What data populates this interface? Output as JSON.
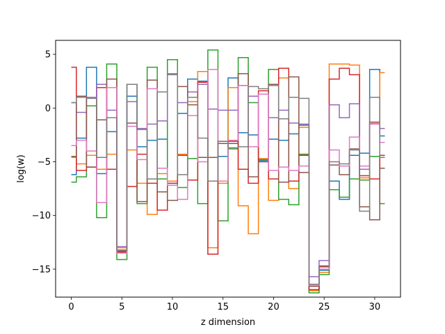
{
  "chart_data": {
    "type": "line",
    "drawstyle": "steps-mid",
    "title": "",
    "xlabel": "z dimension",
    "ylabel": "log(w)",
    "xlim": [
      -1.55,
      32.55
    ],
    "ylim": [
      -17.6,
      6.3
    ],
    "xticks": [
      0,
      5,
      10,
      15,
      20,
      25,
      30
    ],
    "yticks": [
      -15,
      -10,
      -5,
      0,
      5
    ],
    "xtick_labels": [
      "0",
      "5",
      "10",
      "15",
      "20",
      "25",
      "30"
    ],
    "ytick_labels": [
      "−15",
      "−10",
      "−5",
      "0",
      "5"
    ],
    "grid": false,
    "legend": false,
    "x": [
      0,
      1,
      2,
      3,
      4,
      5,
      6,
      7,
      8,
      9,
      10,
      11,
      12,
      13,
      14,
      15,
      16,
      17,
      18,
      19,
      20,
      21,
      22,
      23,
      24,
      25,
      26,
      27,
      28,
      29,
      30,
      31
    ],
    "series": [
      {
        "color": "#1f77b4",
        "values": [
          -6.2,
          -2.8,
          3.8,
          -6.1,
          -2.2,
          -13.4,
          1.1,
          -3.6,
          -3.0,
          -2.9,
          -7.0,
          -0.5,
          2.7,
          2.5,
          -4.6,
          -4.5,
          2.8,
          -2.3,
          -2.5,
          -4.9,
          -2.9,
          -3.0,
          -2.4,
          -1.6,
          -16.9,
          -15.1,
          -6.8,
          -8.5,
          -4.4,
          -4.2,
          3.6,
          -2.6
        ]
      },
      {
        "color": "#ff7f0e",
        "values": [
          -4.6,
          -5.2,
          -4.4,
          -5.7,
          -4.3,
          -13.0,
          -3.9,
          -7.0,
          -9.9,
          -6.1,
          -6.8,
          -4.3,
          0.6,
          3.4,
          -13.0,
          -7.0,
          1.9,
          -9.1,
          -11.7,
          -4.7,
          -8.6,
          2.8,
          -7.5,
          -1.8,
          -17.0,
          -15.3,
          4.1,
          4.1,
          4.0,
          -6.5,
          -1.4,
          3.3
        ]
      },
      {
        "color": "#2ca02c",
        "values": [
          -6.9,
          -6.4,
          0.2,
          -10.2,
          4.1,
          -14.1,
          2.2,
          -8.9,
          3.8,
          -6.6,
          4.5,
          -7.4,
          -4.7,
          -8.9,
          5.4,
          -10.5,
          -3.8,
          4.7,
          0.5,
          -4.8,
          3.6,
          -8.5,
          -9.0,
          -4.3,
          -17.2,
          -15.5,
          -7.6,
          -8.3,
          -6.6,
          -6.7,
          -4.5,
          -8.9
        ]
      },
      {
        "color": "#d62728",
        "values": [
          3.8,
          -5.8,
          -5.5,
          1.9,
          -5.7,
          -13.4,
          -7.3,
          -4.3,
          -7.0,
          -9.5,
          -7.0,
          -4.4,
          -6.7,
          2.4,
          -13.6,
          -3.1,
          -3.1,
          -5.7,
          -7.0,
          1.6,
          -6.6,
          3.7,
          -6.8,
          -4.4,
          -16.9,
          -14.7,
          2.7,
          3.7,
          3.1,
          -6.3,
          -6.6,
          -4.4
        ]
      },
      {
        "color": "#9467bd",
        "values": [
          0.5,
          -0.4,
          1.0,
          2.2,
          -0.2,
          -12.9,
          0.6,
          -1.9,
          -1.5,
          -1.2,
          3.2,
          0.5,
          1.5,
          2.2,
          -0.1,
          -0.2,
          -0.2,
          2.1,
          1.1,
          1.3,
          -0.9,
          -0.2,
          -1.4,
          -1.5,
          -15.7,
          -14.2,
          0.3,
          -0.9,
          0.4,
          -5.7,
          -1.3,
          -1.9
        ]
      },
      {
        "color": "#8c564b",
        "values": [
          -4.5,
          1.1,
          -5.5,
          -1.1,
          2.7,
          -13.3,
          -1.4,
          -8.7,
          2.6,
          -7.8,
          -8.6,
          2.0,
          0.3,
          -4.6,
          -4.6,
          -3.3,
          -3.3,
          3.2,
          -6.4,
          -5.0,
          2.2,
          -6.9,
          2.9,
          -6.0,
          -16.6,
          -14.8,
          -5.3,
          -6.2,
          -3.8,
          -9.2,
          -10.4,
          -5.6
        ]
      },
      {
        "color": "#e377c2",
        "values": [
          -3.5,
          -3.0,
          -4.0,
          -8.8,
          1.9,
          -13.5,
          -1.7,
          -4.8,
          1.8,
          -5.6,
          -7.2,
          -8.5,
          -0.7,
          -5.0,
          3.6,
          -6.8,
          -3.0,
          2.1,
          -3.6,
          1.3,
          -5.8,
          -5.5,
          -5.8,
          -5.4,
          -16.5,
          -15.0,
          -3.9,
          -5.4,
          -2.7,
          -5.4,
          -1.5,
          -3.2
        ]
      },
      {
        "color": "#7f7f7f",
        "values": [
          0.5,
          1.0,
          0.9,
          -4.6,
          -0.9,
          -13.2,
          2.2,
          -2.0,
          -6.6,
          1.5,
          3.1,
          -6.2,
          1.0,
          -2.8,
          -6.8,
          -3.1,
          -3.7,
          -3.6,
          2.0,
          1.8,
          2.1,
          -1.0,
          1.0,
          0.9,
          -16.4,
          -14.8,
          -5.0,
          -5.2,
          -3.9,
          -9.6,
          1.0,
          -4.6
        ]
      }
    ]
  }
}
